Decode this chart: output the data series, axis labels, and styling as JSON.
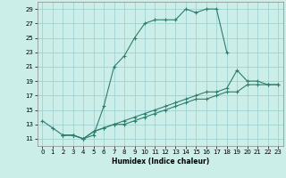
{
  "xlabel": "Humidex (Indice chaleur)",
  "xlim": [
    -0.5,
    23.5
  ],
  "ylim": [
    10,
    30
  ],
  "xticks": [
    0,
    1,
    2,
    3,
    4,
    5,
    6,
    7,
    8,
    9,
    10,
    11,
    12,
    13,
    14,
    15,
    16,
    17,
    18,
    19,
    20,
    21,
    22,
    23
  ],
  "yticks": [
    11,
    13,
    15,
    17,
    19,
    21,
    23,
    25,
    27,
    29
  ],
  "background_color": "#cceee8",
  "grid_color": "#99cccc",
  "line_color": "#2e7d6e",
  "line1_x": [
    0,
    1,
    2,
    3,
    4,
    5,
    6,
    7,
    8,
    9,
    10,
    11,
    12,
    13,
    14,
    15,
    16,
    17,
    18
  ],
  "line1_y": [
    13.5,
    12.5,
    11.5,
    11.5,
    11.0,
    11.5,
    15.5,
    21.0,
    22.5,
    25.0,
    27.0,
    27.5,
    27.5,
    27.5,
    29.0,
    28.5,
    29.0,
    29.0,
    23.0
  ],
  "line2_x": [
    2,
    3,
    4,
    5,
    6,
    7,
    8,
    9,
    10,
    11,
    12,
    13,
    14,
    15,
    16,
    17,
    18,
    19,
    20,
    21,
    22,
    23
  ],
  "line2_y": [
    11.5,
    11.5,
    11.0,
    12.0,
    12.5,
    13.0,
    13.5,
    14.0,
    14.5,
    15.0,
    15.5,
    16.0,
    16.5,
    17.0,
    17.5,
    17.5,
    18.0,
    20.5,
    19.0,
    19.0,
    18.5,
    18.5
  ],
  "line3_x": [
    2,
    3,
    4,
    5,
    6,
    7,
    8,
    9,
    10,
    11,
    12,
    13,
    14,
    15,
    16,
    17,
    18,
    19,
    20,
    21,
    22,
    23
  ],
  "line3_y": [
    11.5,
    11.5,
    11.0,
    12.0,
    12.5,
    13.0,
    13.0,
    13.5,
    14.0,
    14.5,
    15.0,
    15.5,
    16.0,
    16.5,
    16.5,
    17.0,
    17.5,
    17.5,
    18.5,
    18.5,
    18.5,
    18.5
  ]
}
